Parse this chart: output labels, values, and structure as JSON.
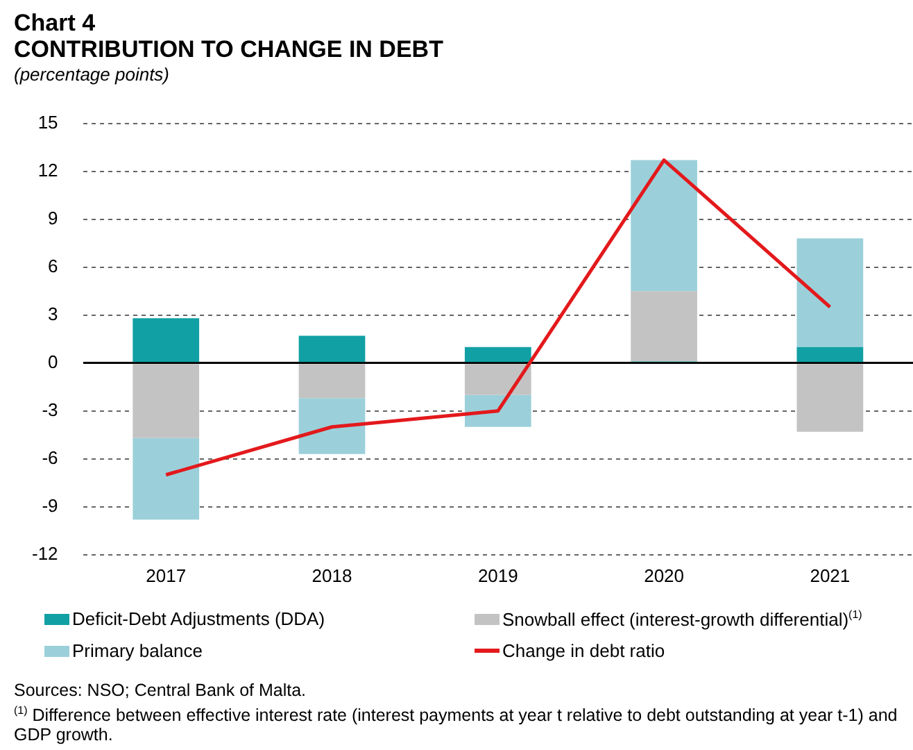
{
  "chart_data": {
    "type": "bar",
    "title": "Chart 4",
    "subtitle": "CONTRIBUTION TO CHANGE IN DEBT",
    "ylabel": "(percentage points)",
    "categories": [
      "2017",
      "2018",
      "2019",
      "2020",
      "2021"
    ],
    "stacked": true,
    "series": [
      {
        "name": "Deficit-Debt Adjustments (DDA)",
        "color": "#11a0a4",
        "values": [
          2.8,
          1.7,
          1.0,
          0.1,
          1.0
        ]
      },
      {
        "name": "Snowball effect (interest-growth differential)$^{(1)}$",
        "color": "#c3c3c3",
        "values": [
          -4.7,
          -2.2,
          -2.0,
          4.4,
          -4.3
        ]
      },
      {
        "name": "Primary balance",
        "color": "#9bd0da",
        "values": [
          -5.1,
          -3.5,
          -2.0,
          8.2,
          6.8
        ]
      },
      {
        "name": "Change in debt ratio",
        "type": "line",
        "color": "#e3191c",
        "values": [
          -7.0,
          -4.0,
          -3.0,
          12.7,
          3.5
        ]
      }
    ],
    "ylim": [
      -12,
      15
    ],
    "yticks": [
      -12,
      -9,
      -6,
      -3,
      0,
      3,
      6,
      9,
      12,
      15
    ],
    "grid": "y",
    "legend": "bottom",
    "marker": "none",
    "line_style": "solid",
    "annotations": [
      "Sources: NSO; Central Bank of Malta.",
      "$^{(1)}$ Difference between effective interest rate (interest payments at year t relative to debt outstanding at year t-1) and GDP growth."
    ]
  }
}
